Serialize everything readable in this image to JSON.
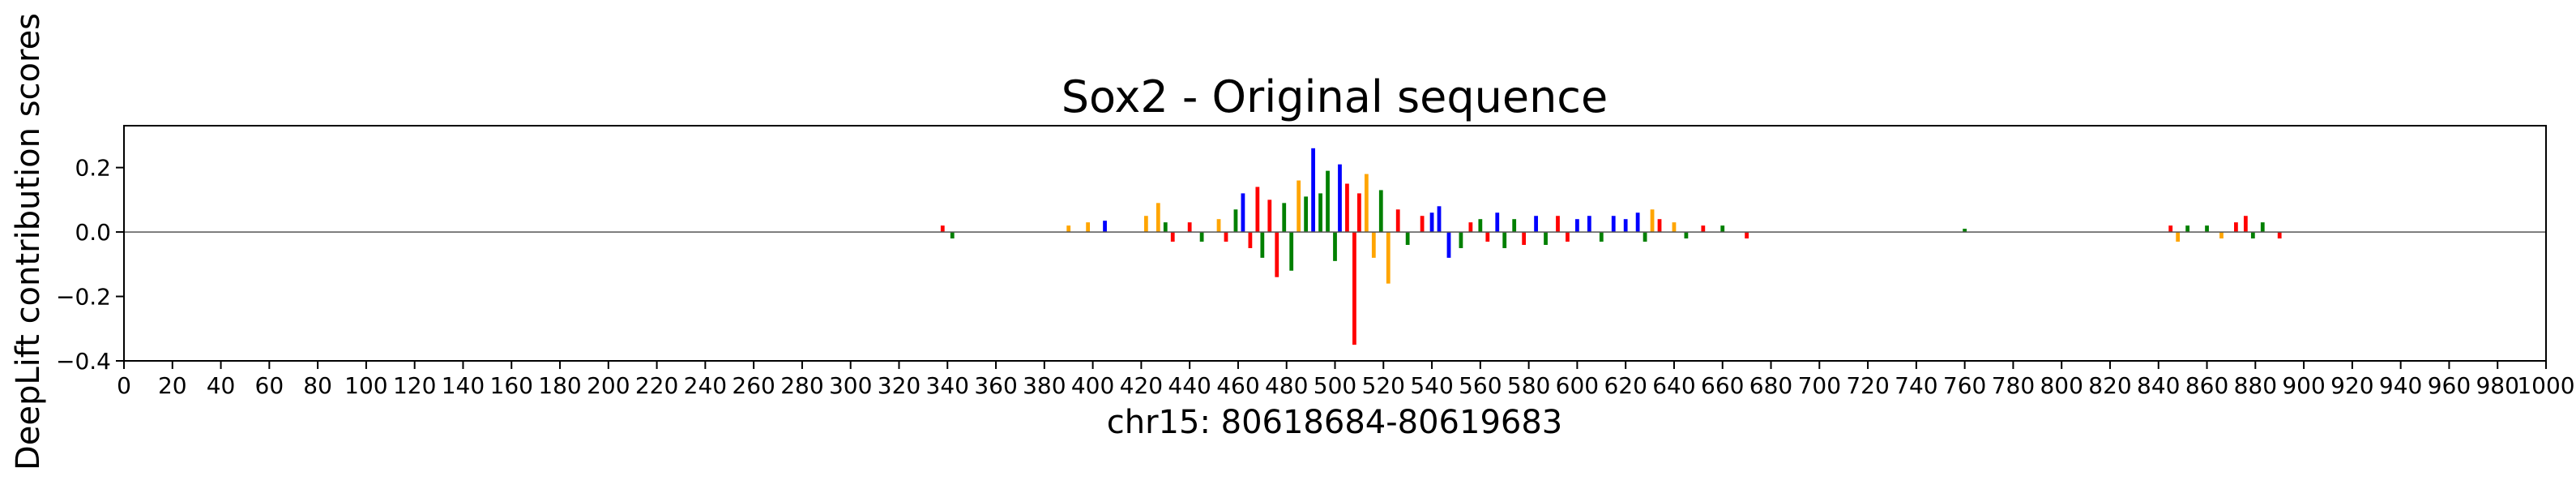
{
  "chart_data": {
    "type": "bar",
    "title": "Sox2 - Original sequence",
    "xlabel": "chr15: 80618684-80619683",
    "ylabel": "DeepLift contribution scores",
    "xlim": [
      0,
      1000
    ],
    "ylim": [
      -0.4,
      0.33
    ],
    "xticks": [
      0,
      20,
      40,
      60,
      80,
      100,
      120,
      140,
      160,
      180,
      200,
      220,
      240,
      260,
      280,
      300,
      320,
      340,
      360,
      380,
      400,
      420,
      440,
      460,
      480,
      500,
      520,
      540,
      560,
      580,
      600,
      620,
      640,
      660,
      680,
      700,
      720,
      740,
      760,
      780,
      800,
      820,
      840,
      860,
      880,
      900,
      920,
      940,
      960,
      980,
      1000
    ],
    "xtick_labels": [
      "0",
      "20",
      "40",
      "60",
      "80",
      "100",
      "120",
      "140",
      "160",
      "180",
      "200",
      "220",
      "240",
      "260",
      "280",
      "300",
      "320",
      "340",
      "360",
      "380",
      "400",
      "420",
      "440",
      "460",
      "480",
      "500",
      "520",
      "540",
      "560",
      "580",
      "600",
      "620",
      "640",
      "660",
      "680",
      "700",
      "720",
      "740",
      "760",
      "780",
      "800",
      "820",
      "840",
      "860",
      "880",
      "900",
      "920",
      "940",
      "960",
      "980",
      "1000"
    ],
    "yticks": [
      -0.4,
      -0.2,
      0.0,
      0.2
    ],
    "ytick_labels": [
      "−0.4",
      "−0.2",
      "0.0",
      "0.2"
    ],
    "grid": false,
    "nucleotide_colors": {
      "A": "#008000",
      "C": "#0000ff",
      "G": "#ffa500",
      "T": "#ff0000"
    },
    "peaks": [
      {
        "x": 338,
        "y": 0.02,
        "base": "T"
      },
      {
        "x": 342,
        "y": -0.02,
        "base": "A"
      },
      {
        "x": 390,
        "y": 0.02,
        "base": "G"
      },
      {
        "x": 398,
        "y": 0.03,
        "base": "G"
      },
      {
        "x": 405,
        "y": 0.035,
        "base": "C"
      },
      {
        "x": 422,
        "y": 0.05,
        "base": "G"
      },
      {
        "x": 427,
        "y": 0.09,
        "base": "G"
      },
      {
        "x": 430,
        "y": 0.03,
        "base": "A"
      },
      {
        "x": 433,
        "y": -0.03,
        "base": "T"
      },
      {
        "x": 440,
        "y": 0.03,
        "base": "T"
      },
      {
        "x": 445,
        "y": -0.03,
        "base": "A"
      },
      {
        "x": 452,
        "y": 0.04,
        "base": "G"
      },
      {
        "x": 455,
        "y": -0.03,
        "base": "T"
      },
      {
        "x": 459,
        "y": 0.07,
        "base": "A"
      },
      {
        "x": 462,
        "y": 0.12,
        "base": "C"
      },
      {
        "x": 465,
        "y": -0.05,
        "base": "T"
      },
      {
        "x": 468,
        "y": 0.14,
        "base": "T"
      },
      {
        "x": 470,
        "y": -0.08,
        "base": "A"
      },
      {
        "x": 473,
        "y": 0.1,
        "base": "T"
      },
      {
        "x": 476,
        "y": -0.14,
        "base": "T"
      },
      {
        "x": 479,
        "y": 0.09,
        "base": "A"
      },
      {
        "x": 482,
        "y": -0.12,
        "base": "A"
      },
      {
        "x": 485,
        "y": 0.16,
        "base": "G"
      },
      {
        "x": 488,
        "y": 0.11,
        "base": "A"
      },
      {
        "x": 491,
        "y": 0.26,
        "base": "C"
      },
      {
        "x": 494,
        "y": 0.12,
        "base": "A"
      },
      {
        "x": 497,
        "y": 0.19,
        "base": "A"
      },
      {
        "x": 500,
        "y": -0.09,
        "base": "A"
      },
      {
        "x": 502,
        "y": 0.21,
        "base": "C"
      },
      {
        "x": 505,
        "y": 0.15,
        "base": "T"
      },
      {
        "x": 508,
        "y": -0.35,
        "base": "T"
      },
      {
        "x": 510,
        "y": 0.12,
        "base": "T"
      },
      {
        "x": 513,
        "y": 0.18,
        "base": "G"
      },
      {
        "x": 516,
        "y": -0.08,
        "base": "G"
      },
      {
        "x": 519,
        "y": 0.13,
        "base": "A"
      },
      {
        "x": 522,
        "y": -0.16,
        "base": "G"
      },
      {
        "x": 526,
        "y": 0.07,
        "base": "T"
      },
      {
        "x": 530,
        "y": -0.04,
        "base": "A"
      },
      {
        "x": 536,
        "y": 0.05,
        "base": "T"
      },
      {
        "x": 540,
        "y": 0.06,
        "base": "C"
      },
      {
        "x": 543,
        "y": 0.08,
        "base": "C"
      },
      {
        "x": 547,
        "y": -0.08,
        "base": "C"
      },
      {
        "x": 552,
        "y": -0.05,
        "base": "A"
      },
      {
        "x": 556,
        "y": 0.03,
        "base": "T"
      },
      {
        "x": 560,
        "y": 0.04,
        "base": "A"
      },
      {
        "x": 563,
        "y": -0.03,
        "base": "T"
      },
      {
        "x": 567,
        "y": 0.06,
        "base": "C"
      },
      {
        "x": 570,
        "y": -0.05,
        "base": "A"
      },
      {
        "x": 574,
        "y": 0.04,
        "base": "A"
      },
      {
        "x": 578,
        "y": -0.04,
        "base": "T"
      },
      {
        "x": 583,
        "y": 0.05,
        "base": "C"
      },
      {
        "x": 587,
        "y": -0.04,
        "base": "A"
      },
      {
        "x": 592,
        "y": 0.05,
        "base": "T"
      },
      {
        "x": 596,
        "y": -0.03,
        "base": "T"
      },
      {
        "x": 600,
        "y": 0.04,
        "base": "C"
      },
      {
        "x": 605,
        "y": 0.05,
        "base": "C"
      },
      {
        "x": 610,
        "y": -0.03,
        "base": "A"
      },
      {
        "x": 615,
        "y": 0.05,
        "base": "C"
      },
      {
        "x": 620,
        "y": 0.04,
        "base": "C"
      },
      {
        "x": 625,
        "y": 0.06,
        "base": "C"
      },
      {
        "x": 628,
        "y": -0.03,
        "base": "A"
      },
      {
        "x": 631,
        "y": 0.07,
        "base": "G"
      },
      {
        "x": 634,
        "y": 0.04,
        "base": "T"
      },
      {
        "x": 640,
        "y": 0.03,
        "base": "G"
      },
      {
        "x": 645,
        "y": -0.02,
        "base": "A"
      },
      {
        "x": 652,
        "y": 0.02,
        "base": "T"
      },
      {
        "x": 660,
        "y": 0.02,
        "base": "A"
      },
      {
        "x": 670,
        "y": -0.02,
        "base": "T"
      },
      {
        "x": 760,
        "y": 0.01,
        "base": "A"
      },
      {
        "x": 845,
        "y": 0.02,
        "base": "T"
      },
      {
        "x": 848,
        "y": -0.03,
        "base": "G"
      },
      {
        "x": 852,
        "y": 0.02,
        "base": "A"
      },
      {
        "x": 860,
        "y": 0.02,
        "base": "A"
      },
      {
        "x": 866,
        "y": -0.02,
        "base": "G"
      },
      {
        "x": 872,
        "y": 0.03,
        "base": "T"
      },
      {
        "x": 876,
        "y": 0.05,
        "base": "T"
      },
      {
        "x": 879,
        "y": -0.02,
        "base": "A"
      },
      {
        "x": 883,
        "y": 0.03,
        "base": "A"
      },
      {
        "x": 890,
        "y": -0.02,
        "base": "T"
      }
    ]
  }
}
